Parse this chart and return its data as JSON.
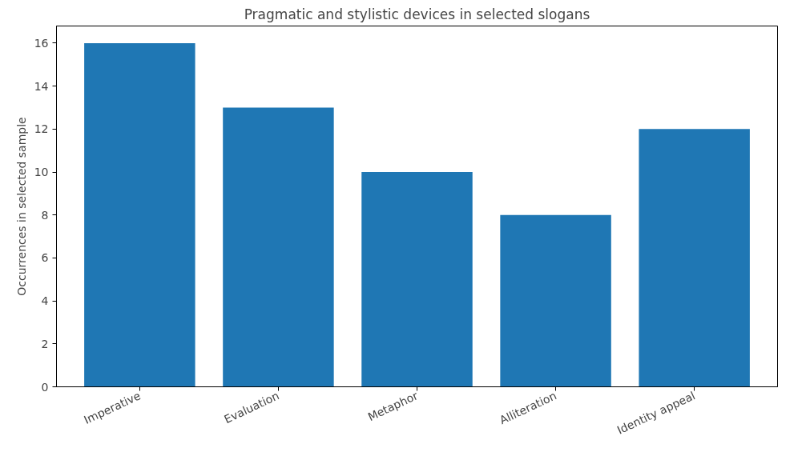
{
  "chart_data": {
    "type": "bar",
    "title": "Pragmatic and stylistic devices in selected slogans",
    "ylabel": "Occurrences in selected sample",
    "categories": [
      "Imperative",
      "Evaluation",
      "Metaphor",
      "Alliteration",
      "Identity appeal"
    ],
    "values": [
      16,
      13,
      10,
      8,
      12
    ],
    "color": "#1f77b4",
    "ylim": [
      0,
      16.8
    ],
    "yticks": [
      0,
      2,
      4,
      6,
      8,
      10,
      12,
      14,
      16
    ],
    "grid": false
  }
}
